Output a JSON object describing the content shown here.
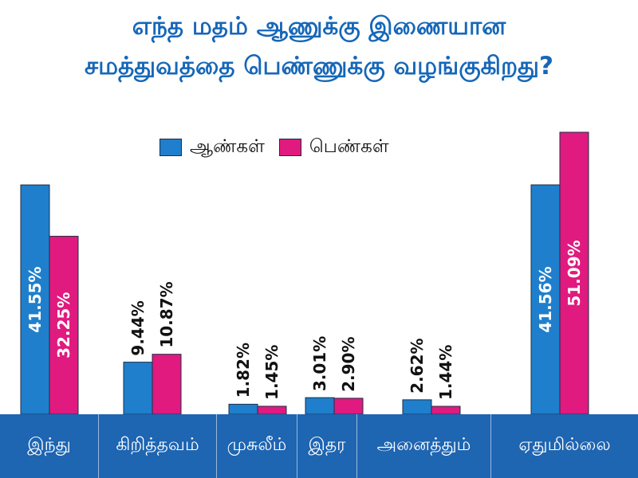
{
  "title_lines": [
    "எந்த மதம் ஆணுக்கு இணையான",
    "சமத்துவத்தை பெண்ணுக்கு வழங்குகிறது?"
  ],
  "colors": {
    "title": "#1667b8",
    "men": "#1f7fcc",
    "women": "#e01a7f",
    "axis_band": "#1e65b2"
  },
  "chart_data": {
    "type": "bar",
    "title": "எந்த மதம் ஆணுக்கு இணையான சமத்துவத்தை பெண்ணுக்கு வழங்குகிறது?",
    "categories": [
      "இந்து",
      "கிறித்தவம்",
      "முசுலீம்",
      "இதர",
      "அனைத்தும்",
      "ஏதுமில்லை"
    ],
    "series": [
      {
        "name": "ஆண்கள்",
        "values": [
          41.55,
          9.44,
          1.82,
          3.01,
          2.62,
          41.56
        ],
        "labels": [
          "41.55%",
          "9.44%",
          "1.82%",
          "3.01%",
          "2.62%",
          "41.56%"
        ]
      },
      {
        "name": "பெண்கள்",
        "values": [
          32.25,
          10.87,
          1.45,
          2.9,
          1.44,
          51.09
        ],
        "labels": [
          "32.25%",
          "10.87%",
          "1.45%",
          "2.90%",
          "1.44%",
          "51.09%"
        ]
      }
    ],
    "ylim": [
      0,
      51.09
    ],
    "grid": false,
    "legend_position": "top-center",
    "xlabel": "",
    "ylabel": ""
  }
}
